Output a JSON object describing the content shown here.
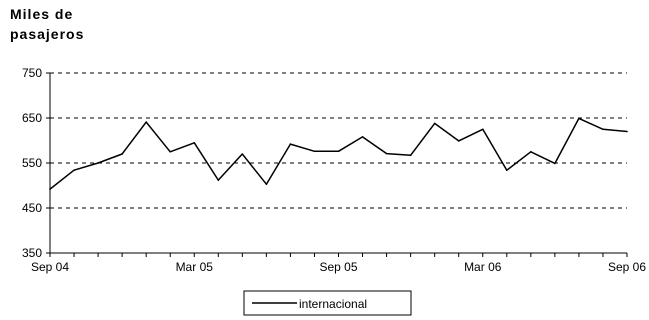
{
  "chart_data": {
    "type": "line",
    "title": "",
    "ylabel_lines": [
      "Miles de",
      "pasajeros"
    ],
    "xlabel": "",
    "ylim": [
      350,
      750
    ],
    "yticks": [
      350,
      450,
      550,
      650,
      750
    ],
    "x_tick_labels": [
      "Sep 04",
      "Mar 05",
      "Sep 05",
      "Mar 06",
      "Sep 06"
    ],
    "x_tick_index": [
      0,
      6,
      12,
      18,
      24
    ],
    "categories": [
      "Sep 04",
      "Oct 04",
      "Nov 04",
      "Dec 04",
      "Jan 05",
      "Feb 05",
      "Mar 05",
      "Apr 05",
      "May 05",
      "Jun 05",
      "Jul 05",
      "Aug 05",
      "Sep 05",
      "Oct 05",
      "Nov 05",
      "Dec 05",
      "Jan 06",
      "Feb 06",
      "Mar 06",
      "Apr 06",
      "May 06",
      "Jun 06",
      "Jul 06",
      "Aug 06",
      "Sep 06"
    ],
    "series": [
      {
        "name": "internacional",
        "color": "#000000",
        "values": [
          492,
          534,
          550,
          570,
          641,
          575,
          595,
          512,
          570,
          503,
          592,
          576,
          576,
          608,
          571,
          567,
          638,
          599,
          625,
          534,
          575,
          549,
          649,
          625,
          620
        ]
      }
    ],
    "grid": "horizontal-dashed",
    "legend_position": "bottom-center"
  }
}
